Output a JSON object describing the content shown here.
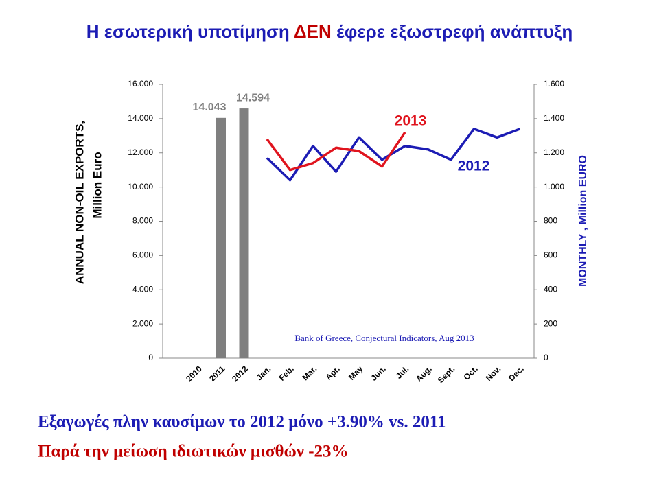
{
  "title_parts": [
    "Η εσωτερική υποτίμηση",
    "ΔΕΝ",
    "έφερε εξωστρεφή ανάπτυξη"
  ],
  "chart_data": {
    "type": "bar_line",
    "categories": [
      "2010",
      "2011",
      "2012",
      "Jan.",
      "Feb.",
      "Mar.",
      "Apr.",
      "May",
      "Jun.",
      "Jul.",
      "Aug.",
      "Sept.",
      "Oct.",
      "Nov.",
      "Dec."
    ],
    "bars": {
      "color": "#7f7f7f",
      "label_color": "#7f7f7f",
      "values": [
        null,
        14043,
        14594,
        null,
        null,
        null,
        null,
        null,
        null,
        null,
        null,
        null,
        null,
        null,
        null
      ],
      "value_labels": [
        null,
        "14.043",
        "14.594",
        null,
        null,
        null,
        null,
        null,
        null,
        null,
        null,
        null,
        null,
        null,
        null
      ]
    },
    "series": [
      {
        "name": "2012",
        "color": "#1c1cb4",
        "axis": "y2",
        "values": [
          null,
          null,
          null,
          1170,
          1040,
          1240,
          1090,
          1290,
          1160,
          1240,
          1220,
          1160,
          1340,
          1290,
          1340
        ]
      },
      {
        "name": "2013",
        "color": "#e0141e",
        "axis": "y2",
        "values": [
          null,
          null,
          null,
          1280,
          1100,
          1140,
          1230,
          1210,
          1120,
          1320,
          null,
          null,
          null,
          null,
          null
        ]
      }
    ],
    "ylabel": [
      "ANNUAL  NON-OIL EXPORTS,",
      "Million  Euro"
    ],
    "y2label": "MONTHLY , Million EURO",
    "ylim": [
      0,
      16000
    ],
    "yticks": [
      0,
      {
        "value": 2000,
        "label": "2.000"
      },
      {
        "value": 4000,
        "label": "4.000"
      },
      {
        "value": 6000,
        "label": "6.000"
      },
      {
        "value": 8000,
        "label": "8.000"
      },
      {
        "value": 10000,
        "label": "10.000"
      },
      {
        "value": 12000,
        "label": "12.000"
      },
      {
        "value": 14000,
        "label": "14.000"
      },
      {
        "value": 16000,
        "label": "16.000"
      }
    ],
    "y2lim": [
      0,
      1600
    ],
    "y2ticks": [
      0,
      200,
      400,
      600,
      800,
      {
        "value": 1000,
        "label": "1.000"
      },
      {
        "value": 1200,
        "label": "1.200"
      },
      {
        "value": 1400,
        "label": "1.400"
      },
      {
        "value": 1600,
        "label": "1.600"
      }
    ],
    "source": "Bank of Greece, Conjectural Indicators, Aug 2013",
    "grid": false
  },
  "footer": [
    "Εξαγωγές πλην καυσίμων το 2012 μόνο +3.90% vs. 2011",
    "Παρά την μείωση ιδιωτικών μισθών -23%"
  ]
}
